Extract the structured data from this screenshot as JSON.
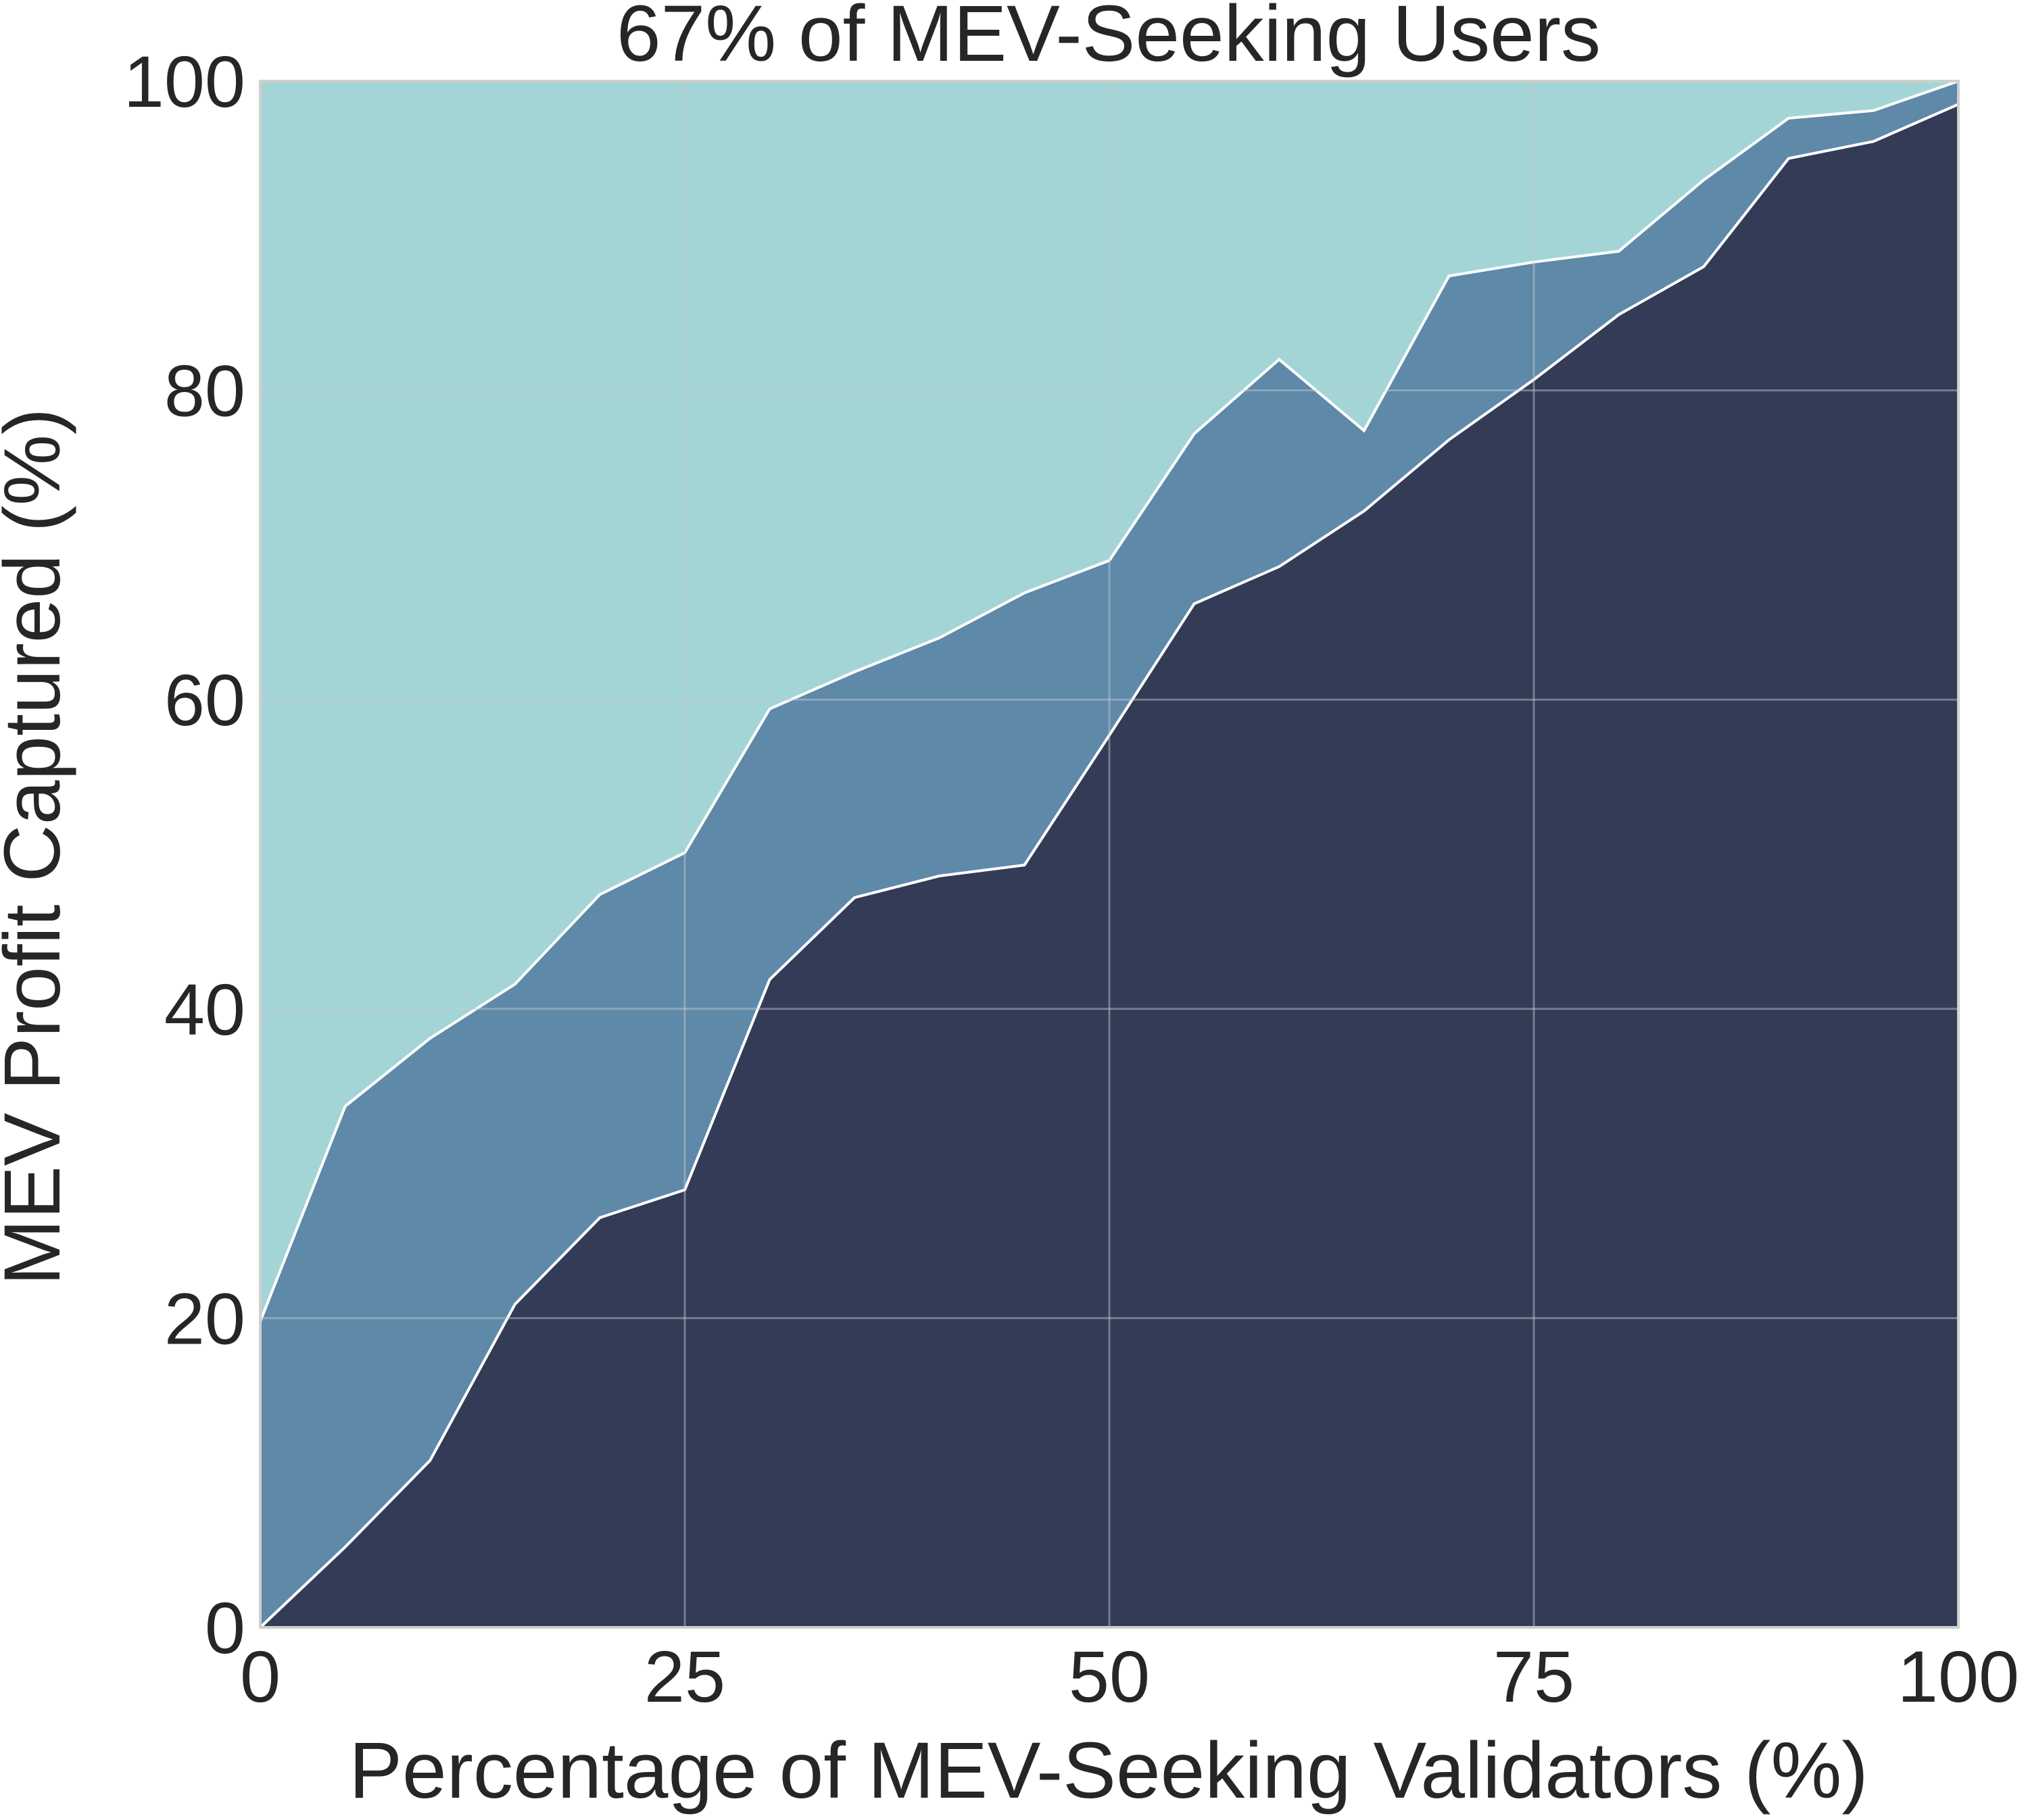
{
  "chart_data": {
    "type": "area",
    "title": "67% of MEV-Seeking Users",
    "xlabel": "Percentage of MEV-Seeking Validators (%)",
    "ylabel": "MEV Profit Captured (%)",
    "xlim": [
      0,
      100
    ],
    "ylim": [
      0,
      100
    ],
    "xticks": [
      0,
      25,
      50,
      75,
      100
    ],
    "yticks": [
      0,
      20,
      40,
      60,
      80,
      100
    ],
    "grid": true,
    "stacked": true,
    "x": [
      0,
      5,
      10,
      15,
      20,
      25,
      30,
      35,
      40,
      45,
      50,
      55,
      60,
      65,
      70,
      75,
      80,
      85,
      90,
      95,
      100
    ],
    "series": [
      {
        "color": "#343b57",
        "values": [
          0,
          5.2,
          10.8,
          20.9,
          26.5,
          28.3,
          41.9,
          47.2,
          48.6,
          49.3,
          57.7,
          66.2,
          68.6,
          72.2,
          76.8,
          80.7,
          84.9,
          88.0,
          95.0,
          96.1,
          98.5
        ]
      },
      {
        "color": "#5e89a9",
        "values": [
          19.8,
          28.5,
          27.3,
          20.7,
          20.9,
          21.8,
          17.5,
          14.6,
          15.4,
          17.6,
          11.3,
          11.0,
          13.4,
          5.2,
          10.6,
          7.6,
          4.1,
          5.6,
          2.6,
          2.0,
          1.5
        ]
      },
      {
        "color": "#a3d5d6",
        "values": [
          80.2,
          66.3,
          61.9,
          58.4,
          52.6,
          49.9,
          40.6,
          38.2,
          36.0,
          33.1,
          31.0,
          22.8,
          18.0,
          22.6,
          12.6,
          11.7,
          11.0,
          6.4,
          2.4,
          1.9,
          0
        ]
      }
    ]
  }
}
